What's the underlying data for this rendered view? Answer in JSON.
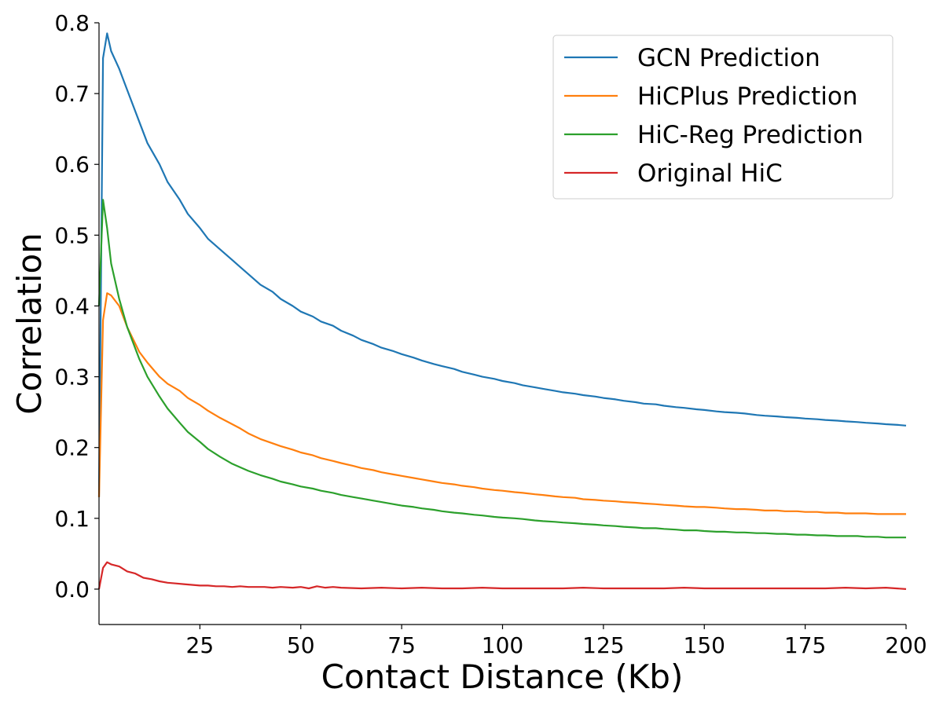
{
  "chart_data": {
    "type": "line",
    "xlabel": "Contact Distance (Kb)",
    "ylabel": "Correlation",
    "xlim": [
      0,
      200
    ],
    "ylim": [
      -0.05,
      0.8
    ],
    "xticks": [
      25,
      50,
      75,
      100,
      125,
      150,
      175,
      200
    ],
    "yticks": [
      0.0,
      0.1,
      0.2,
      0.3,
      0.4,
      0.5,
      0.6,
      0.7,
      0.8
    ],
    "xtick_labels": [
      "25",
      "50",
      "75",
      "100",
      "125",
      "150",
      "175",
      "200"
    ],
    "ytick_labels": [
      "0.0",
      "0.1",
      "0.2",
      "0.3",
      "0.4",
      "0.5",
      "0.6",
      "0.7",
      "0.8"
    ],
    "grid": false,
    "legend_position": "top-right",
    "series": [
      {
        "name": "GCN Prediction",
        "color": "#1f77b4",
        "x": [
          0,
          1,
          2,
          3,
          5,
          7,
          10,
          12,
          15,
          17,
          20,
          22,
          25,
          27,
          30,
          33,
          35,
          37,
          40,
          43,
          45,
          48,
          50,
          53,
          55,
          58,
          60,
          63,
          65,
          68,
          70,
          73,
          75,
          78,
          80,
          83,
          85,
          88,
          90,
          93,
          95,
          98,
          100,
          103,
          105,
          108,
          110,
          113,
          115,
          118,
          120,
          123,
          125,
          128,
          130,
          133,
          135,
          138,
          140,
          143,
          145,
          148,
          150,
          153,
          155,
          158,
          160,
          163,
          165,
          168,
          170,
          173,
          175,
          178,
          180,
          183,
          185,
          188,
          190,
          193,
          195,
          198,
          200
        ],
        "y": [
          0.13,
          0.75,
          0.785,
          0.76,
          0.735,
          0.705,
          0.66,
          0.63,
          0.6,
          0.575,
          0.55,
          0.53,
          0.51,
          0.495,
          0.48,
          0.465,
          0.455,
          0.445,
          0.43,
          0.42,
          0.41,
          0.4,
          0.392,
          0.385,
          0.378,
          0.372,
          0.365,
          0.358,
          0.352,
          0.346,
          0.341,
          0.336,
          0.332,
          0.327,
          0.323,
          0.318,
          0.315,
          0.311,
          0.307,
          0.303,
          0.3,
          0.297,
          0.294,
          0.291,
          0.288,
          0.285,
          0.283,
          0.28,
          0.278,
          0.276,
          0.274,
          0.272,
          0.27,
          0.268,
          0.266,
          0.264,
          0.262,
          0.261,
          0.259,
          0.257,
          0.256,
          0.254,
          0.253,
          0.251,
          0.25,
          0.249,
          0.248,
          0.246,
          0.245,
          0.244,
          0.243,
          0.242,
          0.241,
          0.24,
          0.239,
          0.238,
          0.237,
          0.236,
          0.235,
          0.234,
          0.233,
          0.232,
          0.231
        ]
      },
      {
        "name": "HiCPlus Prediction",
        "color": "#ff7f0e",
        "x": [
          0,
          1,
          2,
          3,
          5,
          7,
          10,
          12,
          15,
          17,
          20,
          22,
          25,
          27,
          30,
          33,
          35,
          37,
          40,
          43,
          45,
          48,
          50,
          53,
          55,
          58,
          60,
          63,
          65,
          68,
          70,
          73,
          75,
          78,
          80,
          83,
          85,
          88,
          90,
          93,
          95,
          98,
          100,
          103,
          105,
          108,
          110,
          113,
          115,
          118,
          120,
          123,
          125,
          128,
          130,
          133,
          135,
          138,
          140,
          143,
          145,
          148,
          150,
          153,
          155,
          158,
          160,
          163,
          165,
          168,
          170,
          173,
          175,
          178,
          180,
          183,
          185,
          188,
          190,
          193,
          195,
          198,
          200
        ],
        "y": [
          0.13,
          0.38,
          0.418,
          0.415,
          0.4,
          0.37,
          0.335,
          0.32,
          0.3,
          0.29,
          0.28,
          0.27,
          0.26,
          0.252,
          0.242,
          0.233,
          0.227,
          0.22,
          0.212,
          0.206,
          0.202,
          0.197,
          0.193,
          0.189,
          0.185,
          0.181,
          0.178,
          0.174,
          0.171,
          0.168,
          0.165,
          0.162,
          0.16,
          0.157,
          0.155,
          0.152,
          0.15,
          0.148,
          0.146,
          0.144,
          0.142,
          0.14,
          0.139,
          0.137,
          0.136,
          0.134,
          0.133,
          0.131,
          0.13,
          0.129,
          0.127,
          0.126,
          0.125,
          0.124,
          0.123,
          0.122,
          0.121,
          0.12,
          0.119,
          0.118,
          0.117,
          0.116,
          0.116,
          0.115,
          0.114,
          0.113,
          0.113,
          0.112,
          0.111,
          0.111,
          0.11,
          0.11,
          0.109,
          0.109,
          0.108,
          0.108,
          0.107,
          0.107,
          0.107,
          0.106,
          0.106,
          0.106,
          0.106
        ]
      },
      {
        "name": "HiC-Reg Prediction",
        "color": "#2ca02c",
        "x": [
          0,
          1,
          2,
          3,
          5,
          7,
          10,
          12,
          15,
          17,
          20,
          22,
          25,
          27,
          30,
          33,
          35,
          37,
          40,
          43,
          45,
          48,
          50,
          53,
          55,
          58,
          60,
          63,
          65,
          68,
          70,
          73,
          75,
          78,
          80,
          83,
          85,
          88,
          90,
          93,
          95,
          98,
          100,
          103,
          105,
          108,
          110,
          113,
          115,
          118,
          120,
          123,
          125,
          128,
          130,
          133,
          135,
          138,
          140,
          143,
          145,
          148,
          150,
          153,
          155,
          158,
          160,
          163,
          165,
          168,
          170,
          173,
          175,
          178,
          180,
          183,
          185,
          188,
          190,
          193,
          195,
          198,
          200
        ],
        "y": [
          0.4,
          0.55,
          0.51,
          0.46,
          0.41,
          0.37,
          0.325,
          0.3,
          0.272,
          0.255,
          0.235,
          0.222,
          0.208,
          0.198,
          0.187,
          0.177,
          0.172,
          0.167,
          0.161,
          0.156,
          0.152,
          0.148,
          0.145,
          0.142,
          0.139,
          0.136,
          0.133,
          0.13,
          0.128,
          0.125,
          0.123,
          0.12,
          0.118,
          0.116,
          0.114,
          0.112,
          0.11,
          0.108,
          0.107,
          0.105,
          0.104,
          0.102,
          0.101,
          0.1,
          0.099,
          0.097,
          0.096,
          0.095,
          0.094,
          0.093,
          0.092,
          0.091,
          0.09,
          0.089,
          0.088,
          0.087,
          0.086,
          0.086,
          0.085,
          0.084,
          0.083,
          0.083,
          0.082,
          0.081,
          0.081,
          0.08,
          0.08,
          0.079,
          0.079,
          0.078,
          0.078,
          0.077,
          0.077,
          0.076,
          0.076,
          0.075,
          0.075,
          0.075,
          0.074,
          0.074,
          0.073,
          0.073,
          0.073
        ]
      },
      {
        "name": "Original HiC",
        "color": "#d62728",
        "x": [
          0,
          1,
          2,
          3,
          5,
          7,
          9,
          11,
          13,
          15,
          17,
          19,
          21,
          23,
          25,
          27,
          29,
          31,
          33,
          35,
          37,
          39,
          41,
          43,
          45,
          48,
          50,
          52,
          54,
          56,
          58,
          60,
          65,
          70,
          75,
          80,
          85,
          90,
          95,
          100,
          105,
          110,
          115,
          120,
          125,
          130,
          135,
          140,
          145,
          150,
          155,
          160,
          165,
          170,
          175,
          180,
          185,
          190,
          195,
          200
        ],
        "y": [
          0.0,
          0.03,
          0.038,
          0.035,
          0.032,
          0.025,
          0.022,
          0.016,
          0.014,
          0.011,
          0.009,
          0.008,
          0.007,
          0.006,
          0.005,
          0.005,
          0.004,
          0.004,
          0.003,
          0.004,
          0.003,
          0.003,
          0.003,
          0.002,
          0.003,
          0.002,
          0.003,
          0.001,
          0.004,
          0.002,
          0.003,
          0.002,
          0.001,
          0.002,
          0.001,
          0.002,
          0.001,
          0.001,
          0.002,
          0.001,
          0.001,
          0.001,
          0.001,
          0.002,
          0.001,
          0.001,
          0.001,
          0.001,
          0.002,
          0.001,
          0.001,
          0.001,
          0.001,
          0.001,
          0.001,
          0.001,
          0.002,
          0.001,
          0.002,
          0.0
        ]
      }
    ]
  }
}
